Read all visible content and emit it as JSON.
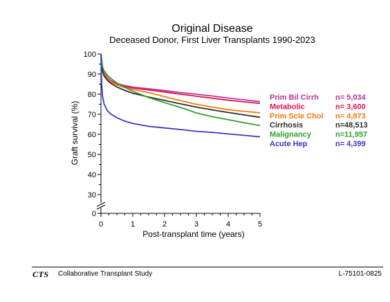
{
  "chart_data": {
    "type": "line",
    "title": "Original Disease",
    "subtitle": "Deceased Donor, First Liver Transplants 1990-2023",
    "xlabel": "Post-transplant time (years)",
    "ylabel": "Graft survival (%)",
    "xlim": [
      0,
      5
    ],
    "ylim_display": [
      20,
      100
    ],
    "axis_break": true,
    "x_ticks": [
      "0",
      "1",
      "2",
      "3",
      "4",
      "5"
    ],
    "y_ticks": [
      "0",
      "30",
      "40",
      "50",
      "60",
      "70",
      "80",
      "90",
      "100"
    ],
    "legend_placement": "right",
    "grid": false,
    "series": [
      {
        "name": "Prim Bil Cirrh",
        "n_label": "n= 5,034",
        "color": "#b5359c",
        "x": [
          0,
          0.05,
          0.1,
          0.2,
          0.3,
          0.5,
          0.75,
          1,
          1.5,
          2,
          2.5,
          3,
          3.5,
          4,
          4.5,
          5
        ],
        "y": [
          100,
          93.8,
          90.7,
          88.4,
          86.9,
          85.3,
          84.3,
          83.5,
          82.7,
          81.8,
          80.8,
          80.0,
          79.1,
          78.1,
          77.2,
          76.3
        ]
      },
      {
        "name": "Metabolic",
        "n_label": "n= 3,600",
        "color": "#e0134f",
        "x": [
          0,
          0.05,
          0.1,
          0.2,
          0.3,
          0.5,
          0.75,
          1,
          1.5,
          2,
          2.5,
          3,
          3.5,
          4,
          4.5,
          5
        ],
        "y": [
          100,
          92.0,
          89.7,
          87.3,
          86.1,
          84.8,
          83.8,
          83.1,
          82.1,
          81.1,
          80.0,
          79.0,
          78.0,
          77.0,
          76.2,
          75.4
        ]
      },
      {
        "name": "Prim Scle Chol",
        "n_label": "n= 4,873",
        "color": "#f47a0f",
        "x": [
          0,
          0.05,
          0.1,
          0.2,
          0.3,
          0.5,
          0.75,
          1,
          1.5,
          2,
          2.5,
          3,
          3.5,
          4,
          4.5,
          5
        ],
        "y": [
          100,
          92.6,
          90.2,
          87.8,
          86.2,
          84.6,
          83.3,
          82.4,
          80.8,
          78.8,
          76.8,
          75.0,
          73.6,
          72.3,
          71.4,
          70.8
        ]
      },
      {
        "name": "Cirrhosis",
        "n_label": "n=48,513",
        "color": "#2b2b2b",
        "x": [
          0,
          0.05,
          0.1,
          0.2,
          0.3,
          0.5,
          0.75,
          1,
          1.5,
          2,
          2.5,
          3,
          3.5,
          4,
          4.5,
          5
        ],
        "y": [
          100,
          91.4,
          89.0,
          86.9,
          85.5,
          83.6,
          81.9,
          80.5,
          78.6,
          76.9,
          75.2,
          73.6,
          72.2,
          70.9,
          69.7,
          68.5
        ]
      },
      {
        "name": "Malignancy",
        "n_label": "n=11,957",
        "color": "#2ea02e",
        "x": [
          0,
          0.05,
          0.1,
          0.2,
          0.3,
          0.5,
          0.75,
          1,
          1.5,
          2,
          2.5,
          3,
          3.5,
          4,
          4.5,
          5
        ],
        "y": [
          100,
          93.4,
          91.6,
          89.5,
          88.0,
          85.6,
          83.4,
          81.5,
          78.3,
          75.8,
          73.4,
          70.7,
          68.8,
          67.3,
          65.8,
          64.4
        ]
      },
      {
        "name": "Acute Hep",
        "n_label": "n= 4,399",
        "color": "#3737c8",
        "x": [
          0,
          0.02,
          0.05,
          0.1,
          0.2,
          0.3,
          0.5,
          0.75,
          1,
          1.5,
          2,
          2.5,
          3,
          3.5,
          4,
          4.5,
          5
        ],
        "y": [
          100,
          86.0,
          79.0,
          75.0,
          71.8,
          70.2,
          68.3,
          66.6,
          65.4,
          64.0,
          63.2,
          62.4,
          61.5,
          61.0,
          60.2,
          59.5,
          58.8
        ]
      }
    ]
  },
  "footer": {
    "logo": "CTS",
    "organization": "Collaborative Transplant Study",
    "chart_id": "L-75101-0825"
  }
}
